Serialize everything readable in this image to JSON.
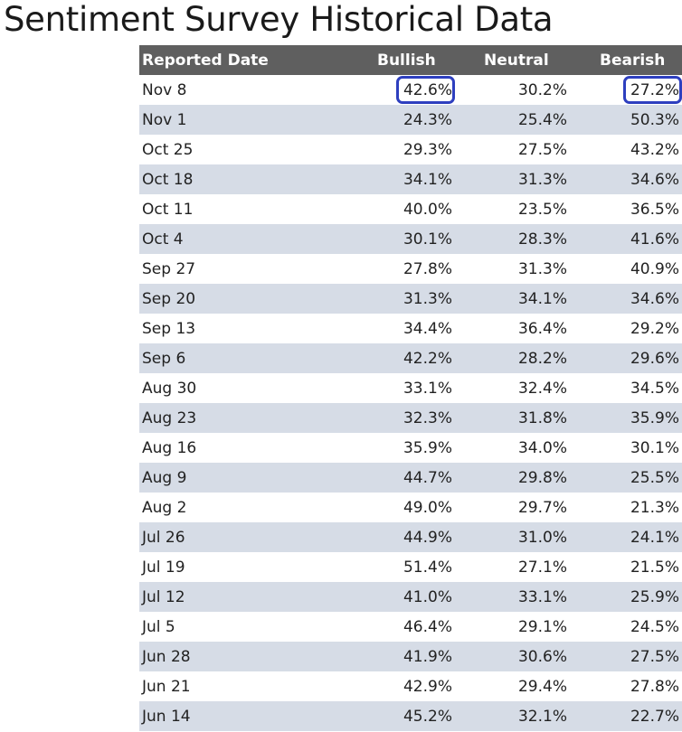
{
  "title": "Sentiment Survey Historical Data",
  "highlight_color": "#2e3fbf",
  "table": {
    "headers": {
      "date": "Reported Date",
      "bullish": "Bullish",
      "neutral": "Neutral",
      "bearish": "Bearish"
    },
    "rows": [
      {
        "date": "Nov 8",
        "bullish": "42.6%",
        "neutral": "30.2%",
        "bearish": "27.2%"
      },
      {
        "date": "Nov 1",
        "bullish": "24.3%",
        "neutral": "25.4%",
        "bearish": "50.3%"
      },
      {
        "date": "Oct 25",
        "bullish": "29.3%",
        "neutral": "27.5%",
        "bearish": "43.2%"
      },
      {
        "date": "Oct 18",
        "bullish": "34.1%",
        "neutral": "31.3%",
        "bearish": "34.6%"
      },
      {
        "date": "Oct 11",
        "bullish": "40.0%",
        "neutral": "23.5%",
        "bearish": "36.5%"
      },
      {
        "date": "Oct 4",
        "bullish": "30.1%",
        "neutral": "28.3%",
        "bearish": "41.6%"
      },
      {
        "date": "Sep 27",
        "bullish": "27.8%",
        "neutral": "31.3%",
        "bearish": "40.9%"
      },
      {
        "date": "Sep 20",
        "bullish": "31.3%",
        "neutral": "34.1%",
        "bearish": "34.6%"
      },
      {
        "date": "Sep 13",
        "bullish": "34.4%",
        "neutral": "36.4%",
        "bearish": "29.2%"
      },
      {
        "date": "Sep 6",
        "bullish": "42.2%",
        "neutral": "28.2%",
        "bearish": "29.6%"
      },
      {
        "date": "Aug 30",
        "bullish": "33.1%",
        "neutral": "32.4%",
        "bearish": "34.5%"
      },
      {
        "date": "Aug 23",
        "bullish": "32.3%",
        "neutral": "31.8%",
        "bearish": "35.9%"
      },
      {
        "date": "Aug 16",
        "bullish": "35.9%",
        "neutral": "34.0%",
        "bearish": "30.1%"
      },
      {
        "date": "Aug 9",
        "bullish": "44.7%",
        "neutral": "29.8%",
        "bearish": "25.5%"
      },
      {
        "date": "Aug 2",
        "bullish": "49.0%",
        "neutral": "29.7%",
        "bearish": "21.3%"
      },
      {
        "date": "Jul 26",
        "bullish": "44.9%",
        "neutral": "31.0%",
        "bearish": "24.1%"
      },
      {
        "date": "Jul 19",
        "bullish": "51.4%",
        "neutral": "27.1%",
        "bearish": "21.5%"
      },
      {
        "date": "Jul 12",
        "bullish": "41.0%",
        "neutral": "33.1%",
        "bearish": "25.9%"
      },
      {
        "date": "Jul 5",
        "bullish": "46.4%",
        "neutral": "29.1%",
        "bearish": "24.5%"
      },
      {
        "date": "Jun 28",
        "bullish": "41.9%",
        "neutral": "30.6%",
        "bearish": "27.5%"
      },
      {
        "date": "Jun 21",
        "bullish": "42.9%",
        "neutral": "29.4%",
        "bearish": "27.8%"
      },
      {
        "date": "Jun 14",
        "bullish": "45.2%",
        "neutral": "32.1%",
        "bearish": "22.7%"
      }
    ]
  }
}
